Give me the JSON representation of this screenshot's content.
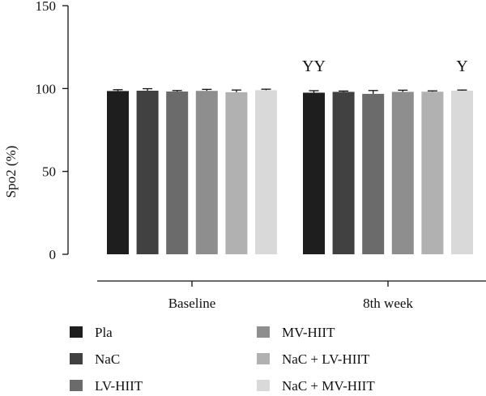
{
  "chart_data": {
    "type": "bar",
    "ylabel": "Spo2 (%)",
    "ylim": [
      0,
      150
    ],
    "yticks": [
      0,
      50,
      100,
      150
    ],
    "groups": [
      "Baseline",
      "8th week"
    ],
    "series": [
      {
        "name": "Pla",
        "color": "#1e1e1e",
        "values": [
          98.5,
          97.5
        ],
        "errors": [
          0.8,
          1.2
        ]
      },
      {
        "name": "NaC",
        "color": "#414141",
        "values": [
          98.7,
          98.0
        ],
        "errors": [
          1.2,
          0.5
        ]
      },
      {
        "name": "LV-HIIT",
        "color": "#6b6b6b",
        "values": [
          98.2,
          96.8
        ],
        "errors": [
          0.6,
          2.0
        ]
      },
      {
        "name": "MV-HIIT",
        "color": "#8e8e8e",
        "values": [
          98.6,
          98.0
        ],
        "errors": [
          0.9,
          1.0
        ]
      },
      {
        "name": "NaC + LV-HIIT",
        "color": "#b1b1b1",
        "values": [
          97.8,
          98.1
        ],
        "errors": [
          1.3,
          0.5
        ]
      },
      {
        "name": "NaC + MV-HIIT",
        "color": "#d9d9d9",
        "values": [
          99.0,
          98.7
        ],
        "errors": [
          0.6,
          0.4
        ]
      }
    ],
    "annotations": [
      {
        "text": "YY",
        "group": 1,
        "series": 0
      },
      {
        "text": "Y",
        "group": 1,
        "series": 5
      }
    ],
    "legend_position": "bottom",
    "grid": false
  }
}
